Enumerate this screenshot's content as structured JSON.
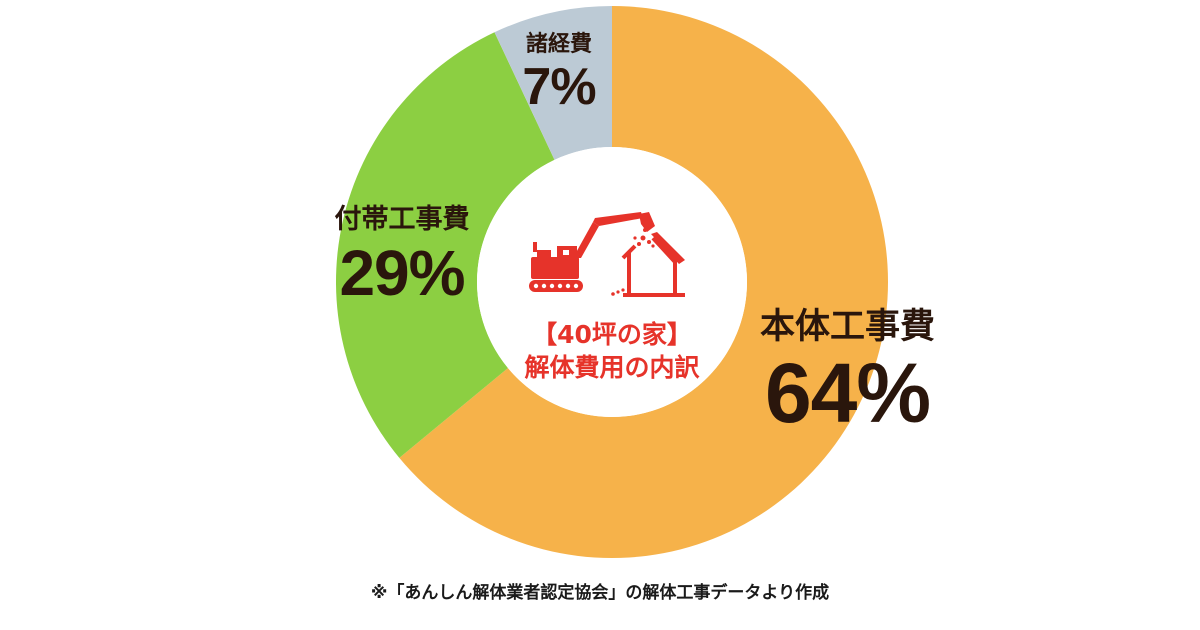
{
  "chart_data": {
    "type": "pie",
    "variant": "donut",
    "title": "【40坪の家】解体費用の内訳",
    "categories": [
      "本体工事費",
      "付帯工事費",
      "諸経費"
    ],
    "values": [
      64,
      29,
      7
    ],
    "unit": "%",
    "colors": [
      "#f6b24a",
      "#8ccf42",
      "#bccad5"
    ],
    "start_angle_deg": 0,
    "direction": "clockwise",
    "legend": "none (direct labels)",
    "note": "※「あんしん解体業者認定協会」の解体工事データより作成"
  },
  "center": {
    "line1": "【40坪の家】",
    "line2": "解体費用の内訳",
    "icon": "excavator-demolishing-house-icon",
    "color": "#e6332a"
  },
  "labels": {
    "main": {
      "name": "本体工事費",
      "pct": "64%"
    },
    "sub": {
      "name": "付帯工事費",
      "pct": "29%"
    },
    "misc": {
      "name": "諸経費",
      "pct": "7%"
    }
  },
  "footnote": "※「あんしん解体業者認定協会」の解体工事データより作成"
}
